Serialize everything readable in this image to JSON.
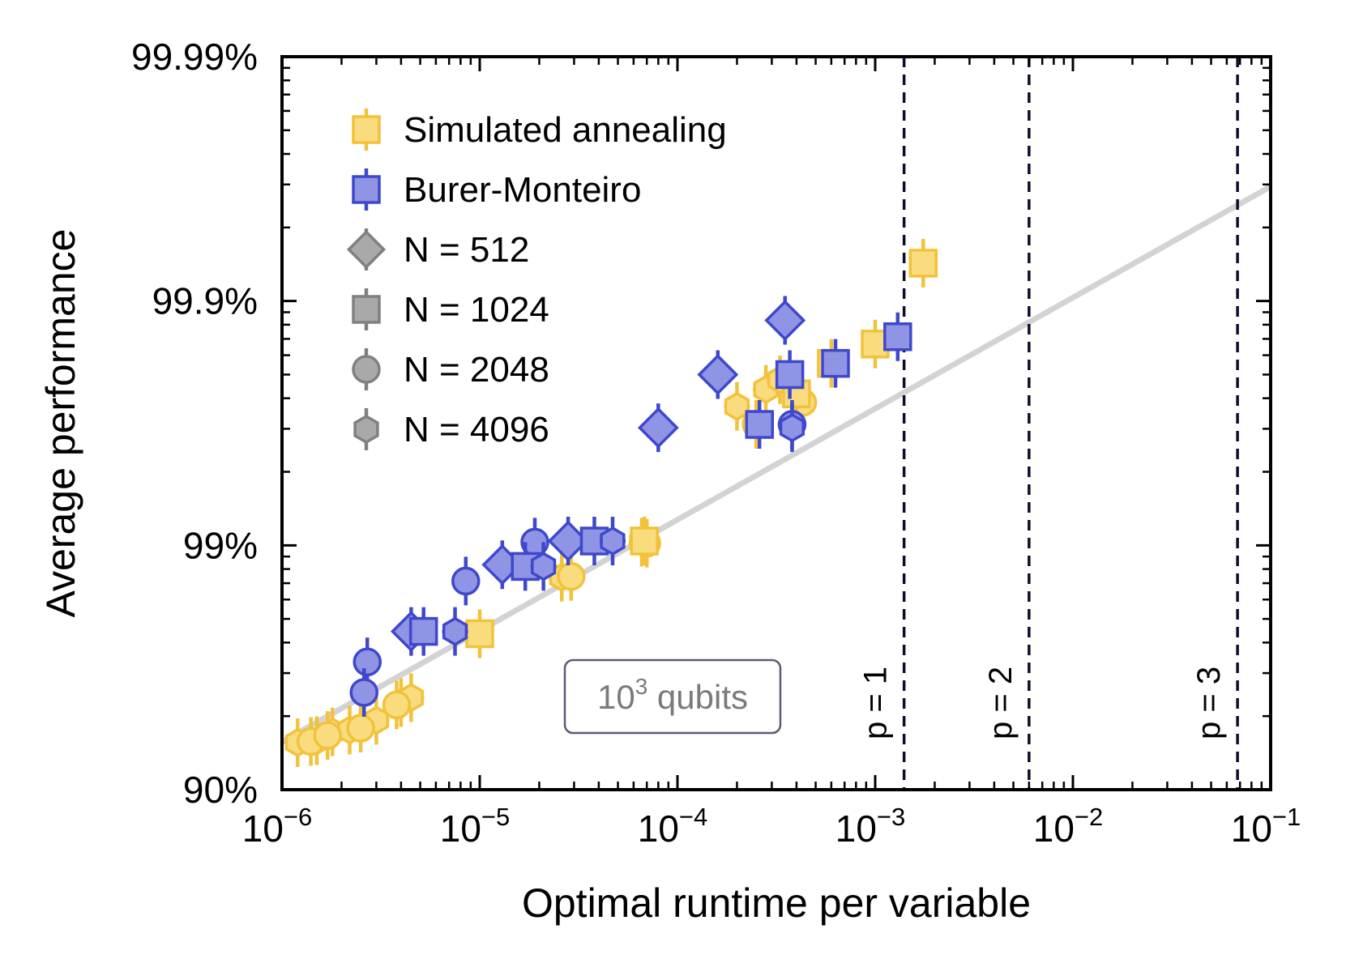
{
  "chart_data": {
    "type": "scatter",
    "xlabel": "Optimal runtime per variable",
    "ylabel": "Average performance",
    "x_scale": "log",
    "xlim": [
      1e-06,
      0.1
    ],
    "x_ticks": [
      {
        "value": 1e-06,
        "base": "10",
        "exp": "−6"
      },
      {
        "value": 1e-05,
        "base": "10",
        "exp": "−5"
      },
      {
        "value": 0.0001,
        "base": "10",
        "exp": "−4"
      },
      {
        "value": 0.001,
        "base": "10",
        "exp": "−3"
      },
      {
        "value": 0.01,
        "base": "10",
        "exp": "−2"
      },
      {
        "value": 0.1,
        "base": "10",
        "exp": "−1"
      }
    ],
    "y_scale": "log residual (1 - performance)",
    "ylim": [
      0.9,
      0.9999
    ],
    "y_ticks": [
      {
        "value": 0.9,
        "label": "90%"
      },
      {
        "value": 0.99,
        "label": "99%"
      },
      {
        "value": 0.999,
        "label": "99.9%"
      },
      {
        "value": 0.9999,
        "label": "99.99%"
      }
    ],
    "grid": false,
    "legend_position": "top-left",
    "legend": [
      {
        "label": "Simulated annealing",
        "marker": "square",
        "color": "#F7C843"
      },
      {
        "label": "Burer-Monteiro",
        "marker": "square",
        "color": "#3F48CC"
      },
      {
        "label": "N = 512",
        "marker": "diamond",
        "color": "#808080"
      },
      {
        "label": "N = 1024",
        "marker": "square",
        "color": "#808080"
      },
      {
        "label": "N = 2048",
        "marker": "circle",
        "color": "#808080"
      },
      {
        "label": "N = 4096",
        "marker": "hexagon",
        "color": "#808080"
      }
    ],
    "colors": {
      "sa_fill": "#F9DC7E",
      "sa_edge": "#F2C23A",
      "bm_fill": "#8F94E4",
      "bm_edge": "#3F48CC",
      "fit_line": "#D3D3D3",
      "vline": "#0D0D2B",
      "box_edge": "#5A5A7A",
      "box_text": "#7A7A7A"
    },
    "fit_line": [
      {
        "x": 1e-06,
        "y": 0.9363
      },
      {
        "x": 0.1,
        "y": 0.99966
      }
    ],
    "vertical_lines": [
      {
        "x": 0.0014,
        "label": "p = 1"
      },
      {
        "x": 0.006,
        "label": "p = 2"
      },
      {
        "x": 0.068,
        "label": "p = 3"
      }
    ],
    "annotation": {
      "text": "10",
      "sup": "3",
      "suffix": " qubits"
    },
    "series": [
      {
        "name": "Simulated annealing",
        "group": "sa",
        "marker": "hexagon",
        "points": [
          {
            "x": 1.2e-06,
            "y": 0.9358
          },
          {
            "x": 1.5e-06,
            "y": 0.937
          },
          {
            "x": 1.8e-06,
            "y": 0.942
          },
          {
            "x": 2.2e-06,
            "y": 0.943
          },
          {
            "x": 3e-06,
            "y": 0.948
          },
          {
            "x": 4e-06,
            "y": 0.956
          },
          {
            "x": 4.5e-06,
            "y": 0.958
          },
          {
            "x": 2.6e-05,
            "y": 0.9865
          },
          {
            "x": 6.6e-05,
            "y": 0.9903
          },
          {
            "x": 0.0002,
            "y": 0.9973
          },
          {
            "x": 0.00028,
            "y": 0.9977
          },
          {
            "x": 0.00033,
            "y": 0.9979
          }
        ]
      },
      {
        "name": "Simulated annealing",
        "group": "sa",
        "marker": "circle",
        "points": [
          {
            "x": 1.4e-06,
            "y": 0.9365
          },
          {
            "x": 1.7e-06,
            "y": 0.94
          },
          {
            "x": 2.5e-06,
            "y": 0.944
          },
          {
            "x": 3.8e-06,
            "y": 0.955
          },
          {
            "x": 2.9e-05,
            "y": 0.9866
          },
          {
            "x": 7e-05,
            "y": 0.9902
          },
          {
            "x": 0.00025,
            "y": 0.9968
          },
          {
            "x": 0.00043,
            "y": 0.9974
          }
        ]
      },
      {
        "name": "Simulated annealing",
        "group": "sa",
        "marker": "square",
        "points": [
          {
            "x": 1e-05,
            "y": 0.977
          },
          {
            "x": 6.8e-05,
            "y": 0.9904
          },
          {
            "x": 0.0004,
            "y": 0.9976
          },
          {
            "x": 0.0006,
            "y": 0.9982
          },
          {
            "x": 0.001,
            "y": 0.9985
          },
          {
            "x": 0.00175,
            "y": 0.9993
          }
        ]
      },
      {
        "name": "Burer-Monteiro",
        "group": "bm",
        "marker": "circle",
        "points": [
          {
            "x": 2.7e-06,
            "y": 0.97
          },
          {
            "x": 2.6e-06,
            "y": 0.96
          },
          {
            "x": 8.5e-06,
            "y": 0.986
          },
          {
            "x": 1.9e-05,
            "y": 0.9903
          },
          {
            "x": 0.00038,
            "y": 0.9968
          }
        ]
      },
      {
        "name": "Burer-Monteiro",
        "group": "bm",
        "marker": "diamond",
        "points": [
          {
            "x": 4.5e-06,
            "y": 0.9775
          },
          {
            "x": 1.3e-05,
            "y": 0.988
          },
          {
            "x": 2.8e-05,
            "y": 0.9904
          },
          {
            "x": 8e-05,
            "y": 0.9967
          },
          {
            "x": 0.00016,
            "y": 0.998
          },
          {
            "x": 0.00035,
            "y": 0.9988
          }
        ]
      },
      {
        "name": "Burer-Monteiro",
        "group": "bm",
        "marker": "square",
        "points": [
          {
            "x": 5.2e-06,
            "y": 0.9775
          },
          {
            "x": 1.7e-05,
            "y": 0.9878
          },
          {
            "x": 3.8e-05,
            "y": 0.9904
          },
          {
            "x": 0.00026,
            "y": 0.9968
          },
          {
            "x": 0.00037,
            "y": 0.998
          },
          {
            "x": 0.00063,
            "y": 0.9982
          },
          {
            "x": 0.0013,
            "y": 0.9986
          }
        ]
      },
      {
        "name": "Burer-Monteiro",
        "group": "bm",
        "marker": "hexagon",
        "points": [
          {
            "x": 7.5e-06,
            "y": 0.9775
          },
          {
            "x": 2.1e-05,
            "y": 0.9878
          },
          {
            "x": 4.7e-05,
            "y": 0.9904
          },
          {
            "x": 0.00038,
            "y": 0.9967
          }
        ]
      }
    ]
  }
}
